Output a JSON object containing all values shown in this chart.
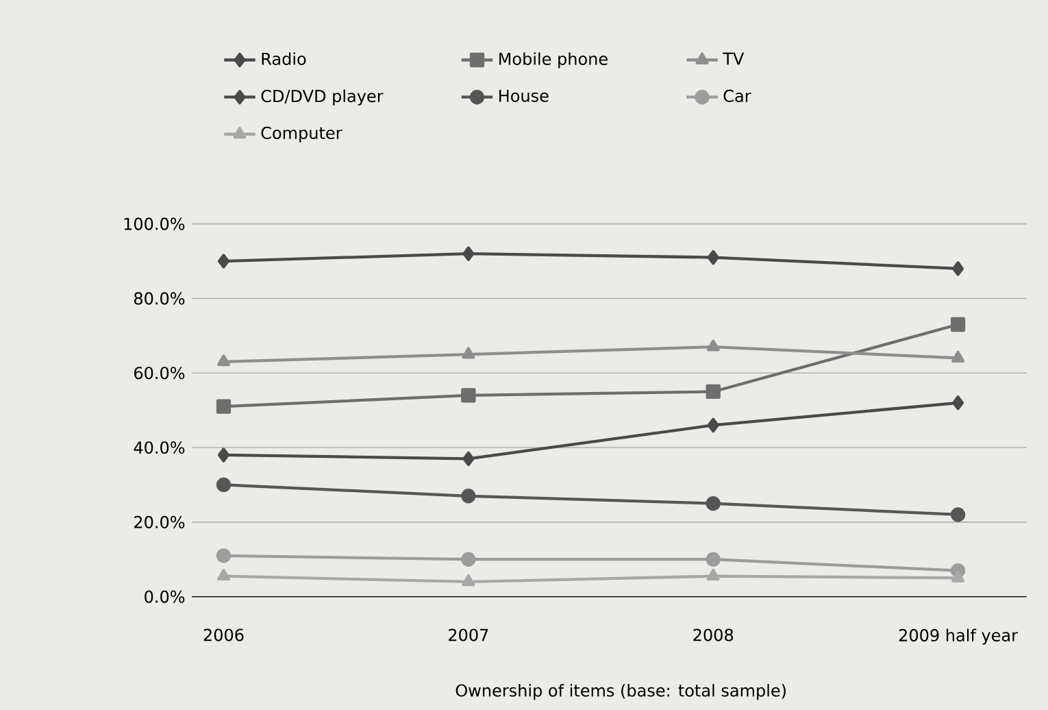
{
  "chart_data": {
    "type": "line",
    "categories": [
      "2006",
      "2007",
      "2008",
      "2009 half year"
    ],
    "series": [
      {
        "name": "Radio",
        "color": "#4a4a4a",
        "marker": "diamond",
        "values": [
          90,
          92,
          91,
          88
        ]
      },
      {
        "name": "Mobile phone",
        "color": "#6e6e6e",
        "marker": "square",
        "values": [
          51,
          54,
          55,
          73
        ]
      },
      {
        "name": "TV",
        "color": "#8e8e8e",
        "marker": "triangle",
        "values": [
          63,
          65,
          67,
          64
        ]
      },
      {
        "name": "CD/DVD player",
        "color": "#4a4a4a",
        "marker": "diamond",
        "values": [
          38,
          37,
          46,
          52
        ]
      },
      {
        "name": "House",
        "color": "#565656",
        "marker": "circle",
        "values": [
          30,
          27,
          25,
          22
        ]
      },
      {
        "name": "Car",
        "color": "#9c9c9c",
        "marker": "circle",
        "values": [
          11,
          10,
          10,
          7
        ]
      },
      {
        "name": "Computer",
        "color": "#a8a8a8",
        "marker": "triangle",
        "values": [
          5.5,
          4,
          5.5,
          5
        ]
      }
    ],
    "ylim": [
      0,
      100
    ],
    "yticks": [
      {
        "value": 0,
        "label": "0.0%"
      },
      {
        "value": 20,
        "label": "20.0%"
      },
      {
        "value": 40,
        "label": "40.0%"
      },
      {
        "value": 60,
        "label": "60.0%"
      },
      {
        "value": 80,
        "label": "80.0%"
      },
      {
        "value": 100,
        "label": "100.0%"
      }
    ],
    "grid": "y",
    "legend": "top",
    "line_style": "solid",
    "annotations": [
      "Ownership of items (base: total sample)"
    ]
  }
}
